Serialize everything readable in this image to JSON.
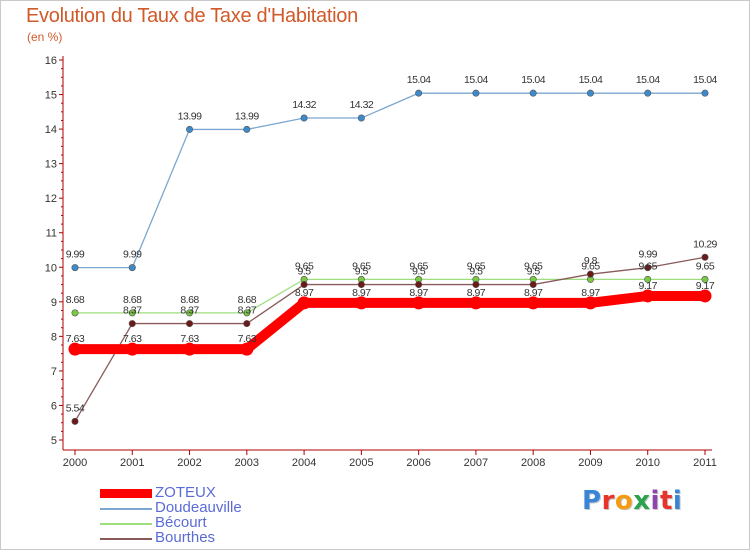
{
  "page": {
    "title": "Evolution du Taux de Taxe d'Habitation",
    "subtitle": "(en %)",
    "logo": "Proxiti",
    "logo_colors": [
      "#3a86d6",
      "#e8332a",
      "#f39c12",
      "#2ba24c",
      "#8e44ad",
      "#e8332a",
      "#3a86d6"
    ]
  },
  "chart_data": {
    "type": "line",
    "title": "Evolution du Taux de Taxe d'Habitation",
    "ylabel": "(en %)",
    "xlabel": "",
    "ylim": [
      5,
      16
    ],
    "yticks": [
      5,
      6,
      7,
      8,
      9,
      10,
      11,
      12,
      13,
      14,
      15,
      16
    ],
    "categories": [
      "2000",
      "2001",
      "2002",
      "2003",
      "2004",
      "2005",
      "2006",
      "2007",
      "2008",
      "2009",
      "2010",
      "2011"
    ],
    "series": [
      {
        "name": "ZOTEUX",
        "color": "#ff0000",
        "values": [
          7.63,
          7.63,
          7.63,
          7.63,
          8.97,
          8.97,
          8.97,
          8.97,
          8.97,
          8.97,
          9.17,
          9.17
        ],
        "labels": [
          "7.63",
          "7.63",
          "7.63",
          "7.63",
          "8.97",
          "8.97",
          "8.97",
          "8.97",
          "8.97",
          "8.97",
          "9.17",
          "9.17"
        ]
      },
      {
        "name": "Doudeauville",
        "color": "#7ba7d0",
        "marker": "#3d8acb",
        "values": [
          9.99,
          9.99,
          13.99,
          13.99,
          14.32,
          14.32,
          15.04,
          15.04,
          15.04,
          15.04,
          15.04,
          15.04
        ],
        "labels": [
          "9.99",
          "9.99",
          "13.99",
          "13.99",
          "14.32",
          "14.32",
          "15.04",
          "15.04",
          "15.04",
          "15.04",
          "15.04",
          "15.04"
        ]
      },
      {
        "name": "Bécourt",
        "color": "#9ede7e",
        "marker": "#7ac943",
        "values": [
          8.68,
          8.68,
          8.68,
          8.68,
          9.65,
          9.65,
          9.65,
          9.65,
          9.65,
          9.65,
          9.65,
          9.65
        ],
        "labels": [
          "8.68",
          "8.68",
          "8.68",
          "8.68",
          "9.65",
          "9.65",
          "9.65",
          "9.65",
          "9.65",
          "9.65",
          "9.65",
          "9.65"
        ]
      },
      {
        "name": "Bourthes",
        "color": "#8a5a5a",
        "marker": "#6b1a1a",
        "values": [
          5.54,
          8.37,
          8.37,
          8.37,
          9.5,
          9.5,
          9.5,
          9.5,
          9.5,
          9.8,
          9.99,
          10.29
        ],
        "labels": [
          "5.54",
          "8.37",
          "8.37",
          "8.37",
          "9.5",
          "9.5",
          "9.5",
          "9.5",
          "9.5",
          "9.8",
          "9.99",
          "10.29"
        ]
      }
    ],
    "legend_position": "bottom-left",
    "grid": false
  }
}
